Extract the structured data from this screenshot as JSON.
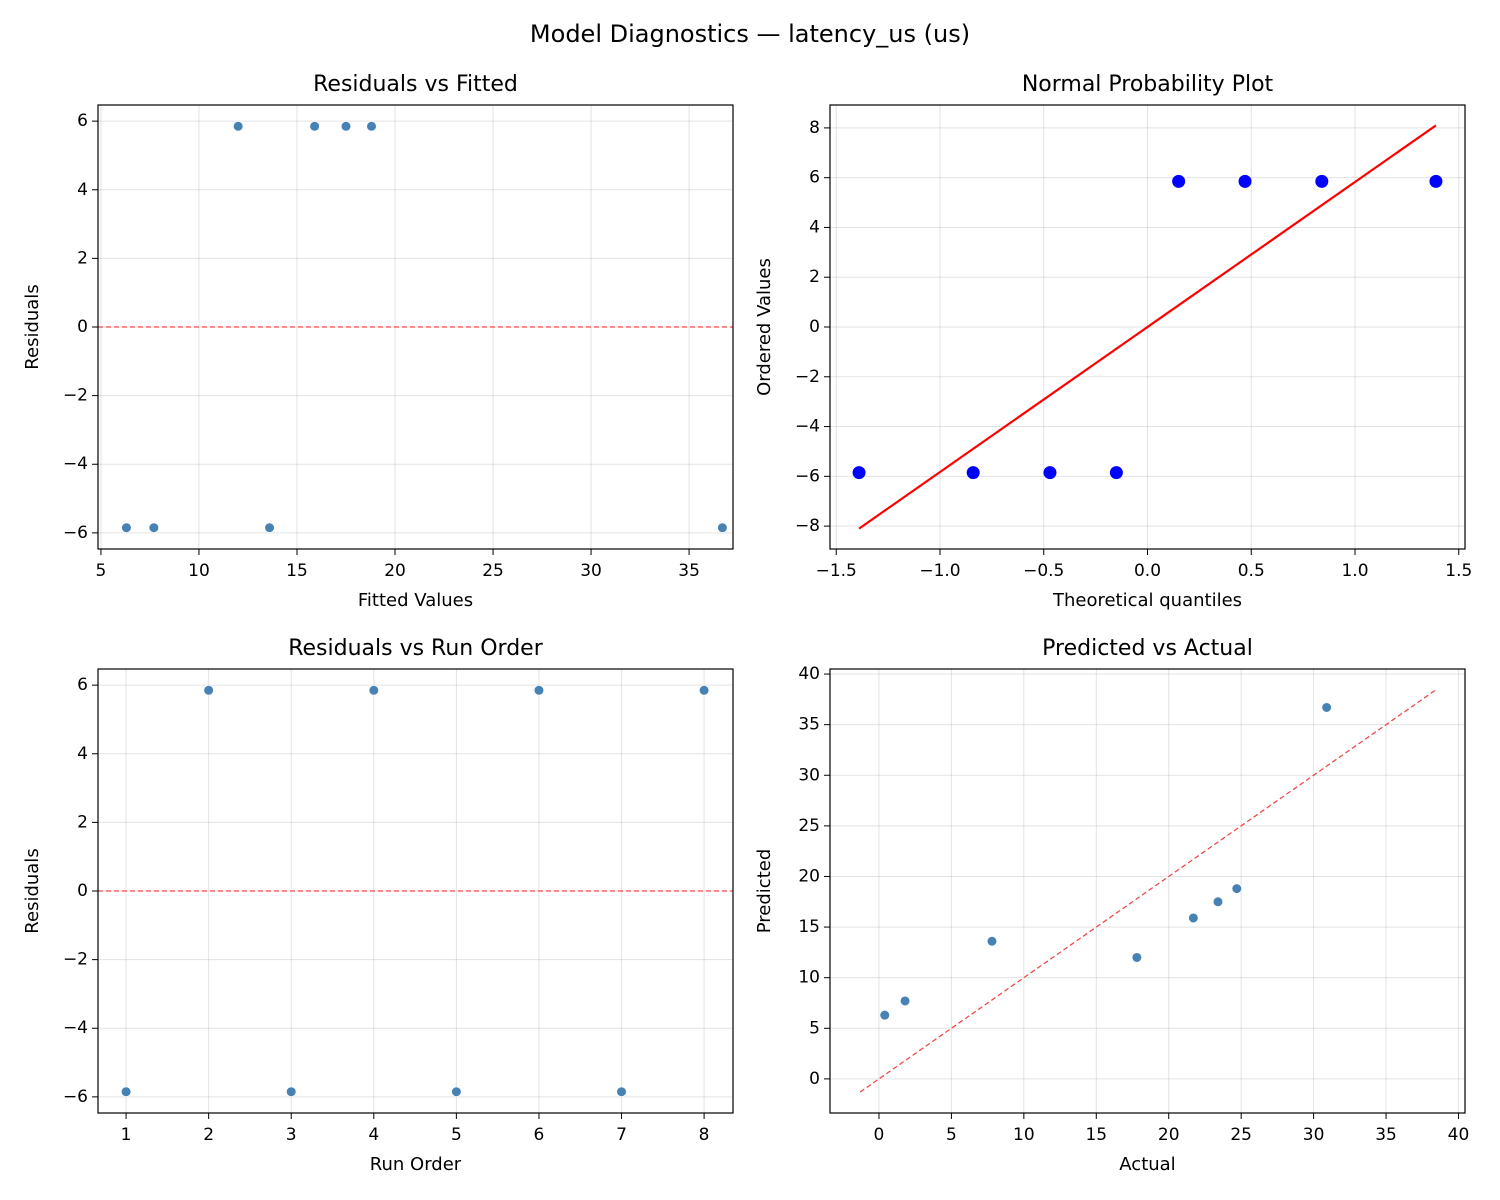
{
  "title": "Model Diagnostics — latency_us (us)",
  "chart_data": [
    {
      "type": "scatter",
      "title": "Residuals vs Fitted",
      "xlabel": "Fitted Values",
      "ylabel": "Residuals",
      "xlim": [
        4.85,
        37.24
      ],
      "ylim": [
        -6.47,
        6.47
      ],
      "xticks": [
        5,
        10,
        15,
        20,
        25,
        30,
        35
      ],
      "yticks": [
        {
          "value": -6,
          "label": "−6"
        },
        {
          "value": -4,
          "label": "−4"
        },
        {
          "value": -2,
          "label": "−2"
        },
        0,
        2,
        4,
        6
      ],
      "grid": true,
      "hline": {
        "value": 0,
        "color": "#ef4b4b"
      },
      "series": [
        {
          "type": "scatter",
          "color": "#4682b4",
          "x": [
            6.3,
            7.7,
            12.0,
            13.6,
            15.9,
            17.5,
            18.8,
            36.7
          ],
          "values": [
            -5.85,
            -5.85,
            5.85,
            -5.85,
            5.85,
            5.85,
            5.85,
            -5.85
          ]
        }
      ]
    },
    {
      "type": "scatter",
      "title": "Normal Probability Plot",
      "xlabel": "Theoretical quantiles",
      "ylabel": "Ordered Values",
      "xlim": [
        -1.53,
        1.53
      ],
      "ylim": [
        -8.92,
        8.92
      ],
      "xticks": [
        {
          "value": -1.5,
          "label": "−1.5"
        },
        {
          "value": -1.0,
          "label": "−1.0"
        },
        {
          "value": -0.5,
          "label": "−0.5"
        },
        {
          "value": 0,
          "label": "0.0"
        },
        0.5,
        {
          "value": 1.0,
          "label": "1.0"
        },
        1.5
      ],
      "yticks": [
        {
          "value": -8,
          "label": "−8"
        },
        {
          "value": -6,
          "label": "−6"
        },
        {
          "value": -4,
          "label": "−4"
        },
        {
          "value": -2,
          "label": "−2"
        },
        0,
        2,
        4,
        6,
        8
      ],
      "grid": true,
      "series": [
        {
          "type": "scatter",
          "color": "#0000ff",
          "x": [
            -1.39,
            -0.84,
            -0.47,
            -0.15,
            0.15,
            0.47,
            0.84,
            1.39
          ],
          "values": [
            -5.85,
            -5.85,
            -5.85,
            -5.85,
            5.85,
            5.85,
            5.85,
            5.85
          ]
        },
        {
          "type": "line",
          "color": "#ff0000",
          "x": [
            -1.39,
            1.39
          ],
          "values": [
            -8.1,
            8.1
          ]
        }
      ]
    },
    {
      "type": "scatter",
      "title": "Residuals vs Run Order",
      "xlabel": "Run Order",
      "ylabel": "Residuals",
      "xlim": [
        0.66,
        8.35
      ],
      "ylim": [
        -6.47,
        6.47
      ],
      "xticks": [
        1,
        2,
        3,
        4,
        5,
        6,
        7,
        8
      ],
      "yticks": [
        {
          "value": -6,
          "label": "−6"
        },
        {
          "value": -4,
          "label": "−4"
        },
        {
          "value": -2,
          "label": "−2"
        },
        0,
        2,
        4,
        6
      ],
      "grid": true,
      "hline": {
        "value": 0,
        "color": "#ef4b4b"
      },
      "series": [
        {
          "type": "scatter",
          "color": "#4682b4",
          "x": [
            1,
            2,
            3,
            4,
            5,
            6,
            7,
            8
          ],
          "values": [
            -5.85,
            5.85,
            -5.85,
            5.85,
            -5.85,
            5.85,
            -5.85,
            5.85
          ]
        }
      ]
    },
    {
      "type": "scatter",
      "title": "Predicted vs Actual",
      "xlabel": "Actual",
      "ylabel": "Predicted",
      "xlim": [
        -3.38,
        40.45
      ],
      "ylim": [
        -3.37,
        40.5
      ],
      "xticks": [
        0,
        5,
        10,
        15,
        20,
        25,
        30,
        35,
        40
      ],
      "yticks": [
        0,
        5,
        10,
        15,
        20,
        25,
        30,
        35,
        40
      ],
      "grid": true,
      "series": [
        {
          "type": "scatter",
          "color": "#4682b4",
          "x": [
            0.4,
            1.8,
            7.8,
            17.8,
            21.7,
            23.4,
            24.7,
            30.9
          ],
          "values": [
            6.3,
            7.7,
            13.6,
            12.0,
            15.9,
            17.5,
            18.8,
            36.7
          ]
        },
        {
          "type": "line",
          "color": "#ef4b4b",
          "dash": true,
          "x": [
            -1.3,
            38.5
          ],
          "values": [
            -1.3,
            38.5
          ]
        }
      ]
    }
  ]
}
